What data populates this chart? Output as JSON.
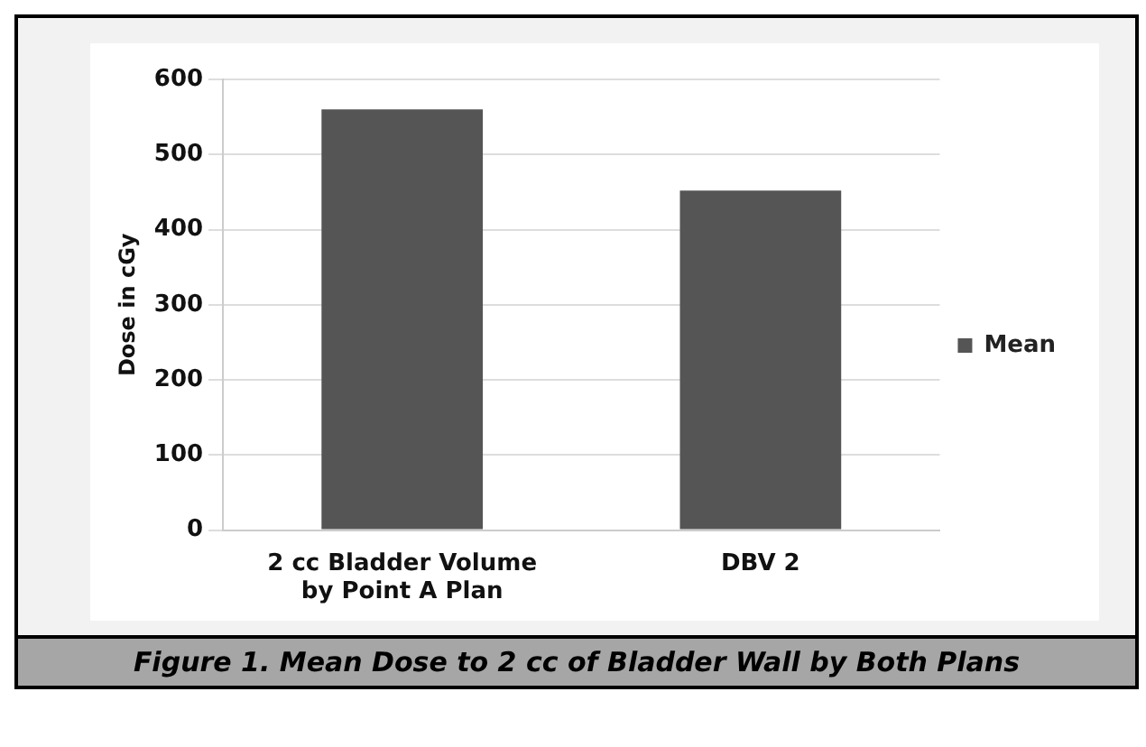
{
  "chart_data": {
    "type": "bar",
    "ylabel": "Dose in cGy",
    "categories": [
      "2 cc Bladder Volume\nby Point A Plan",
      "DBV 2"
    ],
    "series": [
      {
        "name": "Mean",
        "color": "#555555",
        "values": [
          560,
          452
        ]
      }
    ],
    "ylim": [
      0,
      600
    ],
    "yticks": [
      0,
      100,
      200,
      300,
      400,
      500,
      600
    ],
    "grid": "y",
    "legend": "right",
    "annotations": [
      "Figure 1. Mean Dose to 2 cc of Bladder Wall by Both Plans"
    ]
  }
}
